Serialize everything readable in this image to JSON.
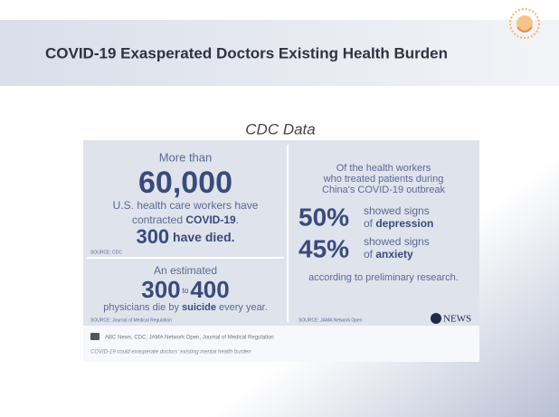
{
  "header": {
    "title": "COVID-19 Exasperated Doctors Existing Health Burden"
  },
  "subtitle": "CDC Data",
  "left_top": {
    "intro": "More than",
    "number": "60,000",
    "line1": "U.S. health care workers have",
    "line2_pre": "contracted ",
    "line2_bold": "COVID-19",
    "line2_post": ".",
    "deaths_number": "300",
    "deaths_text": " have died.",
    "source": "SOURCE: CDC"
  },
  "left_bottom": {
    "intro": "An estimated",
    "low": "300",
    "to": "to",
    "high": "400",
    "line_pre": "physicians die by ",
    "line_bold": "suicide",
    "line_post": " every year.",
    "source": "SOURCE: Journal of Medical Regulation"
  },
  "right": {
    "intro": [
      "Of the health workers",
      "who treated patients during",
      "China's COVID-19 outbreak"
    ],
    "stat1": {
      "number": "50%",
      "line1": "showed signs",
      "line2_pre": "of ",
      "line2_bold": "depression"
    },
    "stat2": {
      "number": "45%",
      "line1": "showed signs",
      "line2_pre": "of ",
      "line2_bold": "anxiety"
    },
    "note": "according to preliminary research.",
    "source": "SOURCE: JAMA Network Open",
    "brand": "NEWS"
  },
  "footer": {
    "credit": "ABC News, CDC, JAMA Network Open, Journal of Medical Regulation",
    "caption": "COVID-19 could exasperate doctors' existing mental health burden"
  }
}
